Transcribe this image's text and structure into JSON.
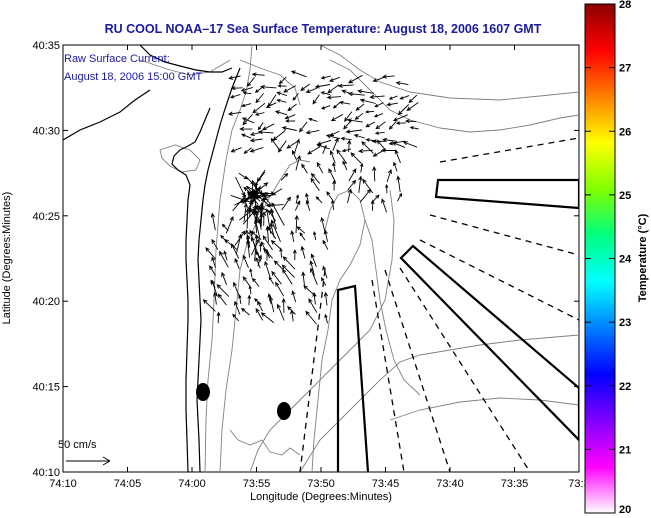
{
  "title": "RU COOL  NOAA–17  Sea Surface Temperature:  August 18, 2006 1607 GMT",
  "annotation_line1": "Raw Surface Current:",
  "annotation_line2": "August 18, 2006 15:00 GMT",
  "scale_label": "50 cm/s",
  "xlabel": "Longitude (Degrees:Minutes)",
  "ylabel": "Latitude (Degrees:Minutes)",
  "x_ticks": [
    "74:10",
    "74:05",
    "74:00",
    "73:55",
    "73:50",
    "73:45",
    "73:40",
    "73:35",
    "73:3"
  ],
  "y_ticks": [
    "40:35",
    "40:30",
    "40:25",
    "40:20",
    "40:15",
    "40:10"
  ],
  "colorbar": {
    "label": "Temperature (°C)",
    "ticks": [
      "28",
      "27",
      "26",
      "25",
      "24",
      "23",
      "22",
      "21",
      "20"
    ],
    "colors": [
      "#8b0000",
      "#ff0000",
      "#ff8000",
      "#ffff00",
      "#80ff00",
      "#00ff80",
      "#00ffff",
      "#0080ff",
      "#0000ff",
      "#8000ff",
      "#ff00ff",
      "#ffffff"
    ]
  },
  "colors": {
    "title": "#1a1aa0",
    "coast": "#000000",
    "bathymetry": "#808080",
    "arrows": "#000000"
  }
}
